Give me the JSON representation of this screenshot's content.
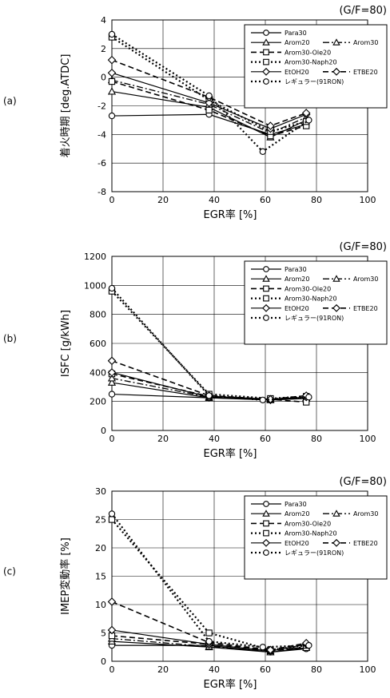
{
  "chart_data": [
    {
      "type": "line",
      "panel_label": "(a)",
      "condition": "(G/F=80)",
      "xlabel": "EGR率 [%]",
      "ylabel": "着火時期 [deg.ATDC]",
      "xlim": [
        0,
        100
      ],
      "ylim": [
        -8,
        4
      ],
      "xticks": [
        0,
        20,
        40,
        60,
        80,
        100
      ],
      "yticks": [
        -8,
        -6,
        -4,
        -2,
        0,
        2,
        4
      ],
      "grid": true,
      "legend_position": "top-right",
      "series": [
        {
          "name": "Para30",
          "marker": "circle",
          "dash": "solid",
          "x": [
            0,
            38,
            62,
            76
          ],
          "y": [
            -2.7,
            -2.6,
            -4.0,
            -3.3
          ]
        },
        {
          "name": "Arom20",
          "marker": "triangle",
          "dash": "solid",
          "x": [
            0,
            38,
            62,
            76
          ],
          "y": [
            -1.0,
            -2.1,
            -4.2,
            -3.0
          ]
        },
        {
          "name": "Arom30",
          "marker": "triangle",
          "dash": "dashdot",
          "x": [
            0,
            38,
            62,
            76
          ],
          "y": [
            -0.2,
            -1.9,
            -3.9,
            -2.8
          ]
        },
        {
          "name": "Arom30-Ole20",
          "marker": "square",
          "dash": "dashed",
          "x": [
            0,
            38,
            62,
            76
          ],
          "y": [
            -0.3,
            -2.3,
            -4.1,
            -3.4
          ]
        },
        {
          "name": "Arom30-Naph20",
          "marker": "square",
          "dash": "dotted",
          "x": [
            0,
            38,
            62,
            76
          ],
          "y": [
            2.8,
            -1.6,
            -3.8,
            -3.1
          ]
        },
        {
          "name": "EtOH20",
          "marker": "diamond",
          "dash": "solid",
          "x": [
            0,
            38,
            62,
            76
          ],
          "y": [
            0.3,
            -1.8,
            -3.6,
            -2.6
          ]
        },
        {
          "name": "ETBE20",
          "marker": "diamond",
          "dash": "dashed",
          "x": [
            0,
            38,
            62,
            76
          ],
          "y": [
            1.2,
            -1.4,
            -3.4,
            -2.5
          ]
        },
        {
          "name": "レギュラー(91RON)",
          "marker": "circle",
          "dash": "dotted",
          "x": [
            0,
            38,
            59,
            77
          ],
          "y": [
            3.0,
            -1.3,
            -5.2,
            -3.0
          ]
        }
      ]
    },
    {
      "type": "line",
      "panel_label": "(b)",
      "condition": "(G/F=80)",
      "xlabel": "EGR率 [%]",
      "ylabel": "ISFC [g/kWh]",
      "xlim": [
        0,
        100
      ],
      "ylim": [
        0,
        1200
      ],
      "xticks": [
        0,
        20,
        40,
        60,
        80,
        100
      ],
      "yticks": [
        0,
        200,
        400,
        600,
        800,
        1000,
        1200
      ],
      "grid": true,
      "legend_position": "top-right",
      "series": [
        {
          "name": "Para30",
          "marker": "circle",
          "dash": "solid",
          "x": [
            0,
            38,
            62,
            76
          ],
          "y": [
            250,
            225,
            215,
            230
          ]
        },
        {
          "name": "Arom20",
          "marker": "triangle",
          "dash": "solid",
          "x": [
            0,
            38,
            62,
            76
          ],
          "y": [
            330,
            225,
            210,
            220
          ]
        },
        {
          "name": "Arom30",
          "marker": "triangle",
          "dash": "dashdot",
          "x": [
            0,
            38,
            62,
            76
          ],
          "y": [
            360,
            230,
            215,
            225
          ]
        },
        {
          "name": "Arom30-Ole20",
          "marker": "square",
          "dash": "dashed",
          "x": [
            0,
            38,
            62,
            76
          ],
          "y": [
            390,
            235,
            215,
            195
          ]
        },
        {
          "name": "Arom30-Naph20",
          "marker": "square",
          "dash": "dotted",
          "x": [
            0,
            38,
            62,
            76
          ],
          "y": [
            960,
            250,
            220,
            235
          ]
        },
        {
          "name": "EtOH20",
          "marker": "diamond",
          "dash": "solid",
          "x": [
            0,
            38,
            62,
            76
          ],
          "y": [
            400,
            230,
            210,
            230
          ]
        },
        {
          "name": "ETBE20",
          "marker": "diamond",
          "dash": "dashed",
          "x": [
            0,
            38,
            62,
            76
          ],
          "y": [
            480,
            240,
            215,
            240
          ]
        },
        {
          "name": "レギュラー(91RON)",
          "marker": "circle",
          "dash": "dotted",
          "x": [
            0,
            38,
            59,
            77
          ],
          "y": [
            980,
            240,
            210,
            230
          ]
        }
      ]
    },
    {
      "type": "line",
      "panel_label": "(c)",
      "condition": "(G/F=80)",
      "xlabel": "EGR率 [%]",
      "ylabel": "IMEP変動率 [%]",
      "xlim": [
        0,
        100
      ],
      "ylim": [
        0,
        30
      ],
      "xticks": [
        0,
        20,
        40,
        60,
        80,
        100
      ],
      "yticks": [
        0,
        5,
        10,
        15,
        20,
        25,
        30
      ],
      "grid": true,
      "legend_position": "top-right",
      "series": [
        {
          "name": "Para30",
          "marker": "circle",
          "dash": "solid",
          "x": [
            0,
            38,
            62,
            76
          ],
          "y": [
            2.8,
            2.8,
            1.6,
            2.2
          ]
        },
        {
          "name": "Arom20",
          "marker": "triangle",
          "dash": "solid",
          "x": [
            0,
            38,
            62,
            76
          ],
          "y": [
            3.5,
            2.5,
            1.6,
            2.4
          ]
        },
        {
          "name": "Arom30",
          "marker": "triangle",
          "dash": "dashdot",
          "x": [
            0,
            38,
            62,
            76
          ],
          "y": [
            4.0,
            2.6,
            1.8,
            2.6
          ]
        },
        {
          "name": "Arom30-Ole20",
          "marker": "square",
          "dash": "dashed",
          "x": [
            0,
            38,
            62,
            76
          ],
          "y": [
            4.5,
            3.0,
            1.9,
            2.4
          ]
        },
        {
          "name": "Arom30-Naph20",
          "marker": "square",
          "dash": "dotted",
          "x": [
            0,
            38,
            62,
            76
          ],
          "y": [
            25.0,
            5.0,
            2.0,
            2.8
          ]
        },
        {
          "name": "EtOH20",
          "marker": "diamond",
          "dash": "solid",
          "x": [
            0,
            38,
            62,
            76
          ],
          "y": [
            5.5,
            3.0,
            1.8,
            3.0
          ]
        },
        {
          "name": "ETBE20",
          "marker": "diamond",
          "dash": "dashed",
          "x": [
            0,
            38,
            62,
            76
          ],
          "y": [
            10.5,
            3.3,
            2.0,
            3.2
          ]
        },
        {
          "name": "レギュラー(91RON)",
          "marker": "circle",
          "dash": "dotted",
          "x": [
            0,
            38,
            59,
            77
          ],
          "y": [
            26.0,
            3.5,
            2.5,
            2.8
          ]
        }
      ]
    }
  ]
}
